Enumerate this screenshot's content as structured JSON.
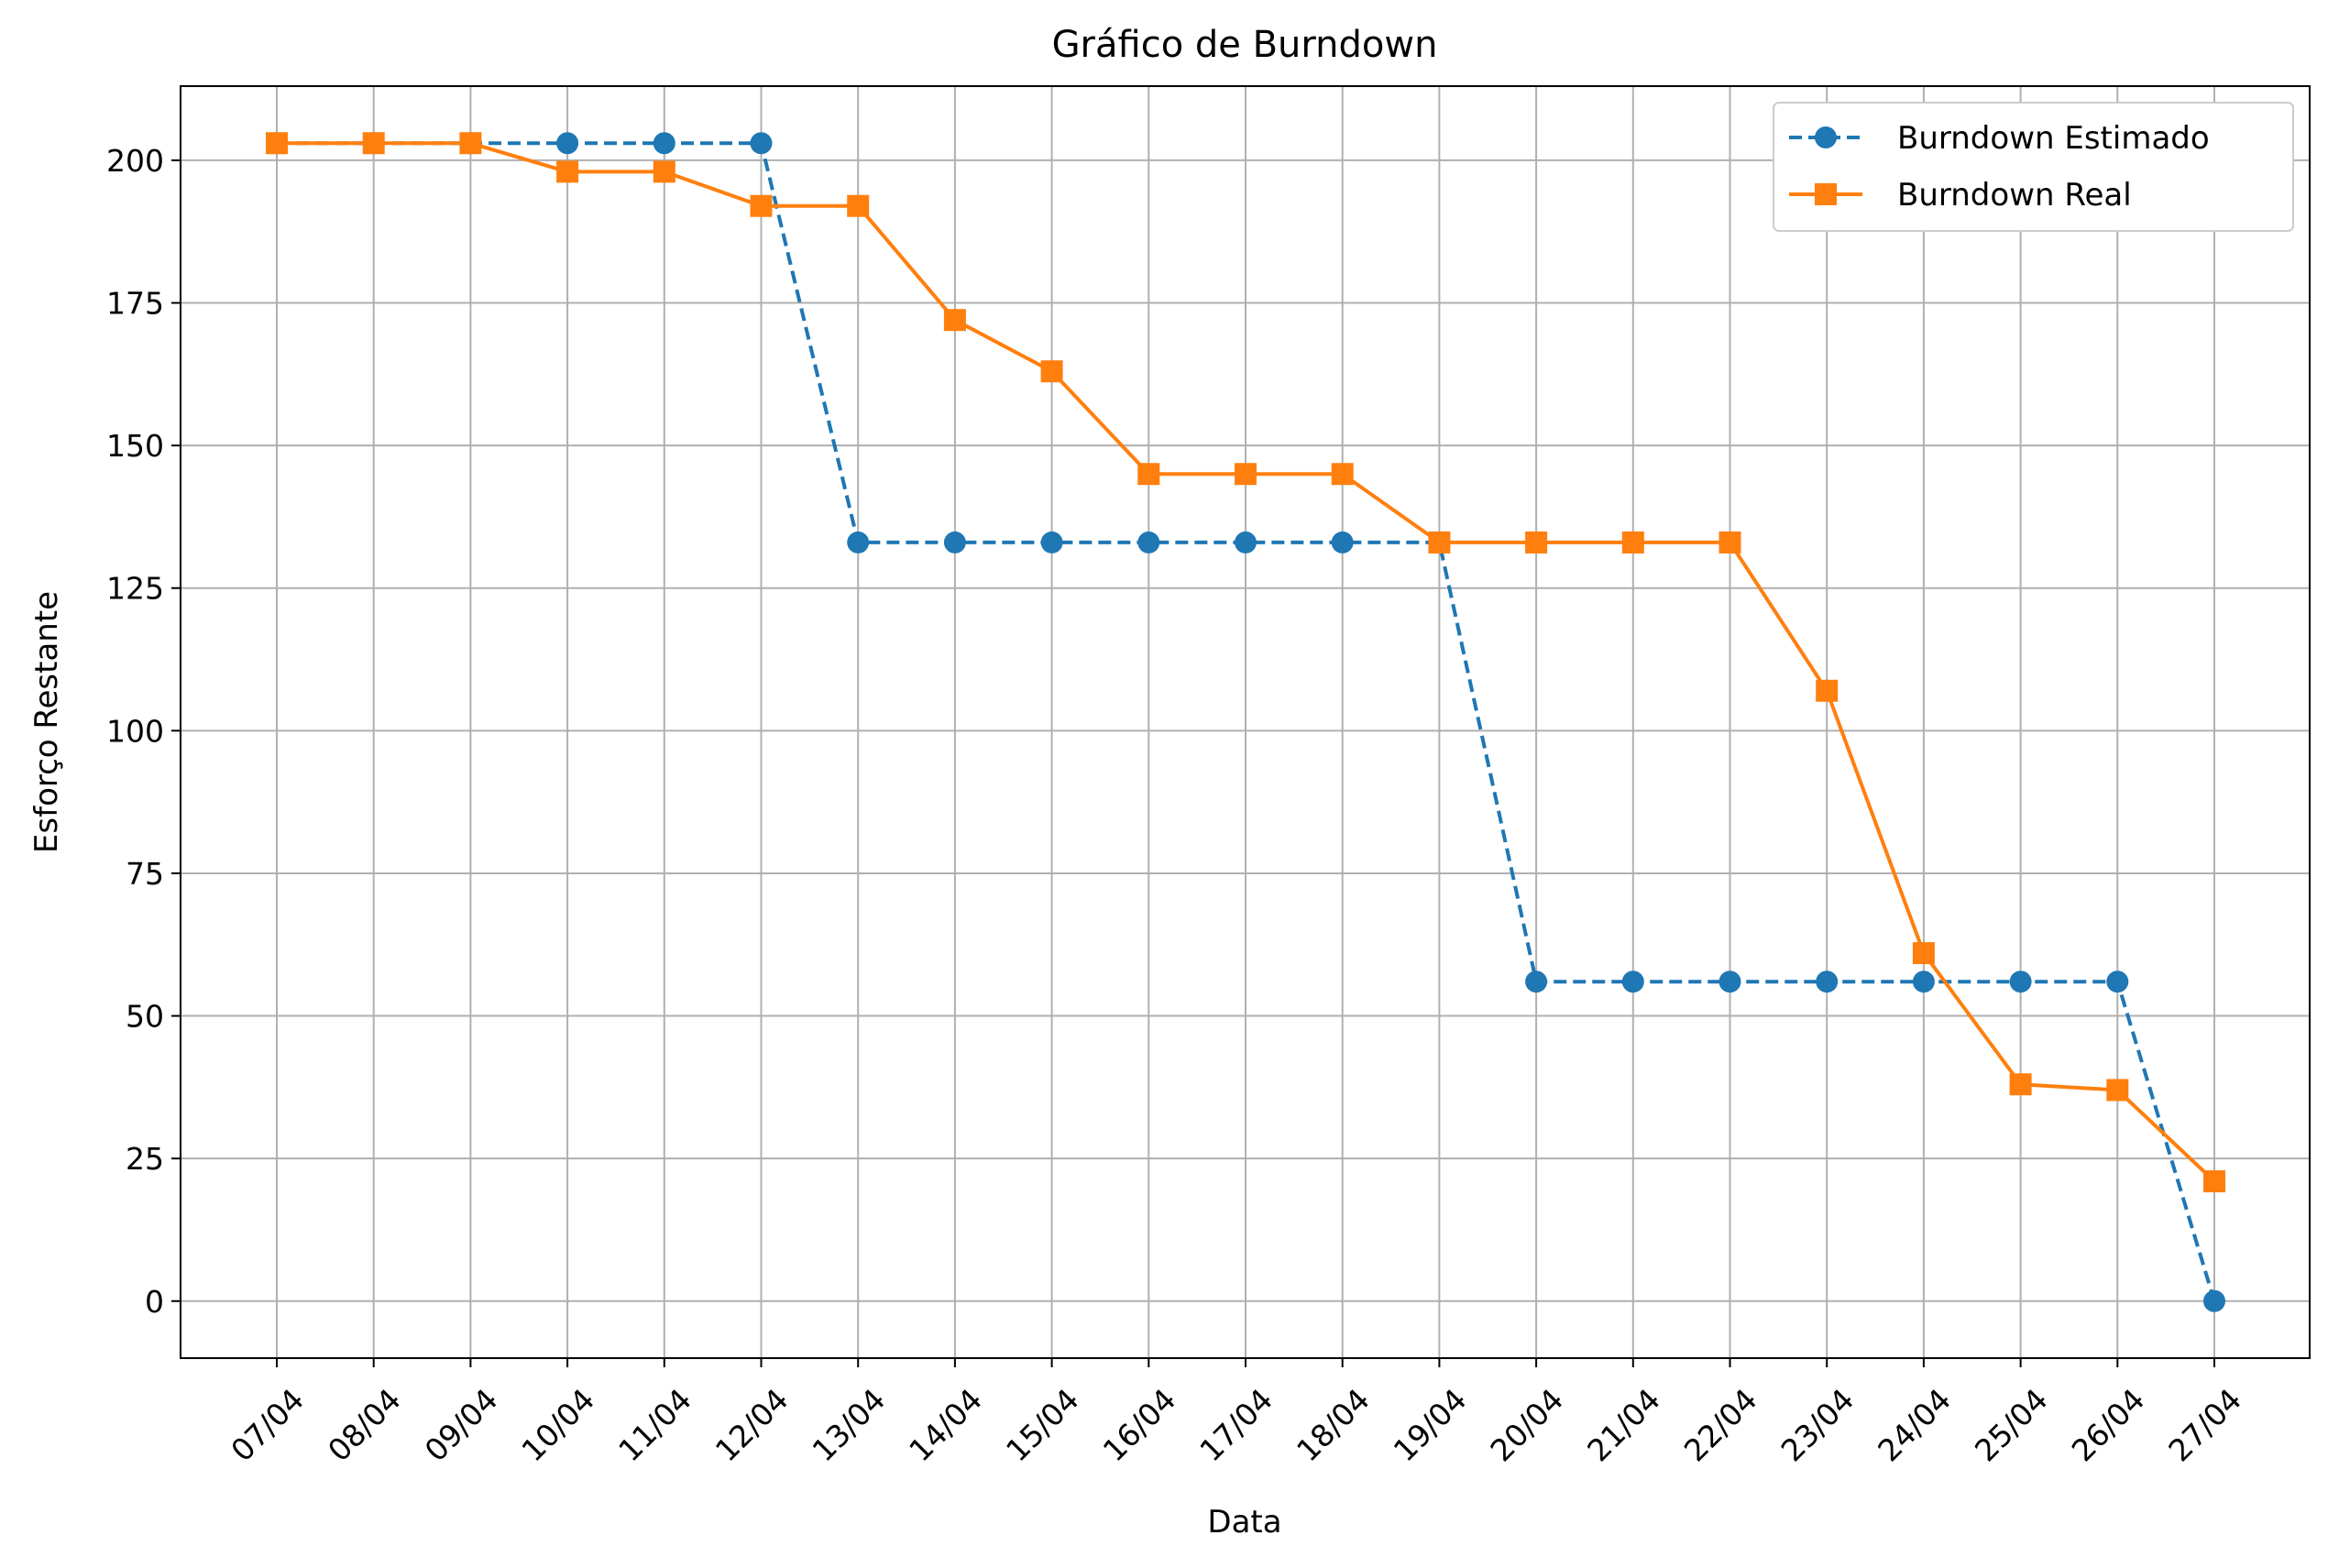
{
  "chart_data": {
    "type": "line",
    "title": "Gráfico de Burndown",
    "xlabel": "Data",
    "ylabel": "Esforço Restante",
    "categories": [
      "07/04",
      "08/04",
      "09/04",
      "10/04",
      "11/04",
      "12/04",
      "13/04",
      "14/04",
      "15/04",
      "16/04",
      "17/04",
      "18/04",
      "19/04",
      "20/04",
      "21/04",
      "22/04",
      "23/04",
      "24/04",
      "25/04",
      "26/04",
      "27/04"
    ],
    "ylim": [
      -10,
      213
    ],
    "yticks": [
      0,
      25,
      50,
      75,
      100,
      125,
      150,
      175,
      200
    ],
    "grid": true,
    "legend_position": "top-right",
    "series": [
      {
        "name": "Burndown Estimado",
        "color": "#1f77b4",
        "linestyle": "dashed",
        "marker": "circle",
        "values": [
          203,
          203,
          203,
          203,
          203,
          203,
          133,
          133,
          133,
          133,
          133,
          133,
          133,
          56,
          56,
          56,
          56,
          56,
          56,
          56,
          0
        ]
      },
      {
        "name": "Burndown Real",
        "color": "#ff7f0e",
        "linestyle": "solid",
        "marker": "square",
        "values": [
          203,
          203,
          203,
          198,
          198,
          192,
          192,
          172,
          163,
          145,
          145,
          145,
          133,
          133,
          133,
          133,
          107,
          61,
          38,
          37,
          21
        ]
      }
    ]
  }
}
